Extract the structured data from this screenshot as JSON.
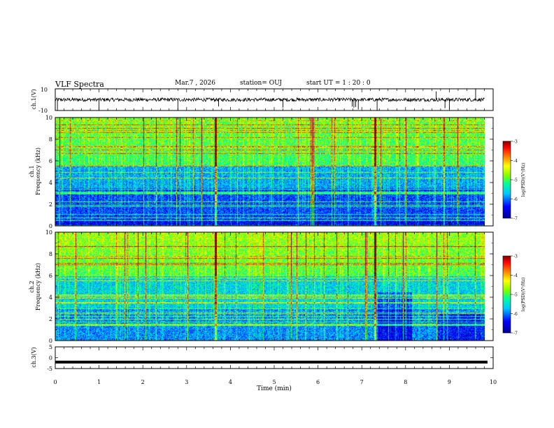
{
  "header": {
    "title": "VLF Spectra",
    "date": "Mar.7 , 2026",
    "station": "station= OUJ",
    "start": "start UT =  1 : 20 : 0"
  },
  "chart_data": [
    {
      "type": "line",
      "panel": "ch1-waveform",
      "ylabel": "ch.1(V)",
      "ylim": [
        -10,
        10
      ],
      "y_ticks": [
        "10",
        "-10"
      ],
      "xlim": [
        0,
        10
      ],
      "baseline": 0,
      "spikes_min": [
        0.05,
        1.0,
        2.8,
        3.73,
        5.2,
        6.78,
        6.82,
        6.86,
        6.92,
        7.35,
        8.7,
        8.9,
        9.0,
        9.6
      ],
      "grid": false
    },
    {
      "type": "heatmap",
      "panel": "ch1-spectrogram",
      "ylabel": "ch.1 Frequency (kHz)",
      "ylim": [
        0,
        10
      ],
      "y_ticks": [
        "0",
        "2",
        "4",
        "6",
        "8",
        "10"
      ],
      "xlim": [
        0,
        10
      ],
      "data_extent_min": 9.8,
      "colorbar": {
        "label": "log(PSD)(V²/Hz)",
        "range": [
          -7,
          -3
        ],
        "ticks": [
          "-3",
          "-4",
          "-5",
          "-6",
          "-7"
        ]
      }
    },
    {
      "type": "heatmap",
      "panel": "ch2-spectrogram",
      "ylabel": "ch.2 Frequency (kHz)",
      "ylim": [
        0,
        10
      ],
      "y_ticks": [
        "0",
        "2",
        "4",
        "6",
        "8",
        "10"
      ],
      "xlim": [
        0,
        10
      ],
      "data_extent_min": 9.8,
      "colorbar": {
        "label": "log(PSD)(V²/Hz)",
        "range": [
          -7,
          -3
        ],
        "ticks": [
          "-3",
          "-4",
          "-5",
          "-6",
          "-7"
        ]
      }
    },
    {
      "type": "line",
      "panel": "ch3-waveform",
      "ylabel": "ch.3(V)",
      "ylim": [
        -5,
        5
      ],
      "y_ticks": [
        "5",
        "0",
        "-5"
      ],
      "xlim": [
        0,
        10
      ],
      "baseline": -2,
      "xlabel": "Time  (min)",
      "x_ticks": [
        "0",
        "1",
        "2",
        "3",
        "4",
        "5",
        "6",
        "7",
        "8",
        "9",
        "10"
      ]
    }
  ],
  "colors": {
    "colormap": [
      "#00008f",
      "#0000ff",
      "#00c8ff",
      "#00ff9a",
      "#7fff00",
      "#ffff00",
      "#ff7f00",
      "#ff0000",
      "#7f0000"
    ]
  }
}
